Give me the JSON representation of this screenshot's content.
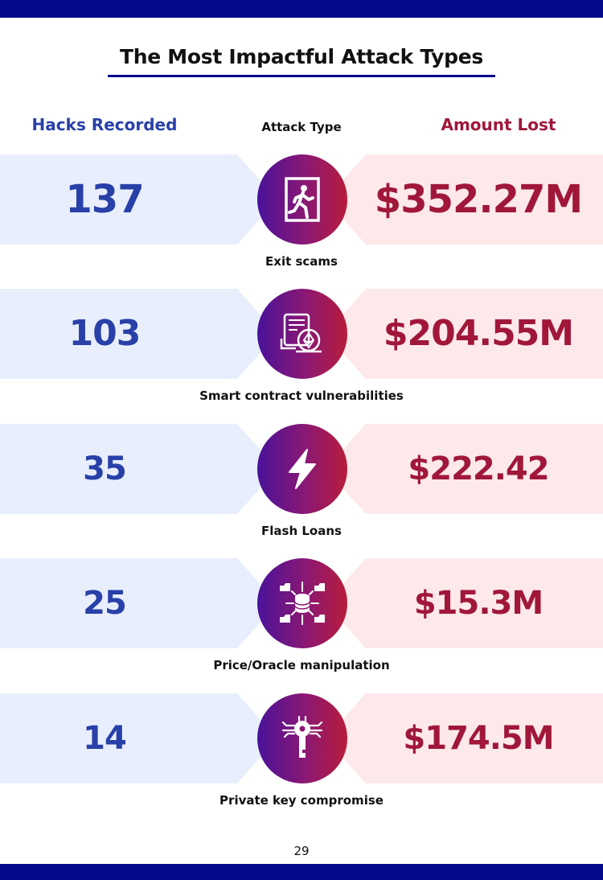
{
  "title": "The Most Impactful Attack Types",
  "columns": {
    "left": "Hacks Recorded",
    "center": "Attack Type",
    "right": "Amount Lost"
  },
  "rows": [
    {
      "count": "137",
      "amount": "$352.27M",
      "label": "Exit scams",
      "icon": "exit-door-icon"
    },
    {
      "count": "103",
      "amount": "$204.55M",
      "label": "Smart contract vulnerabilities",
      "icon": "smart-contract-icon"
    },
    {
      "count": "35",
      "amount": "$222.42",
      "label": "Flash Loans",
      "icon": "lightning-bolt-icon"
    },
    {
      "count": "25",
      "amount": "$15.3M",
      "label": "Price/Oracle manipulation",
      "icon": "database-network-icon"
    },
    {
      "count": "14",
      "amount": "$174.5M",
      "label": "Private key compromise",
      "icon": "circuit-key-icon"
    }
  ],
  "colors": {
    "band": "#050a8c",
    "count_blue": "#2840a8",
    "amount_red": "#a0173a",
    "left_band_bg": "#e8eefc",
    "right_band_bg": "#fde8ea"
  },
  "page_number": "29"
}
